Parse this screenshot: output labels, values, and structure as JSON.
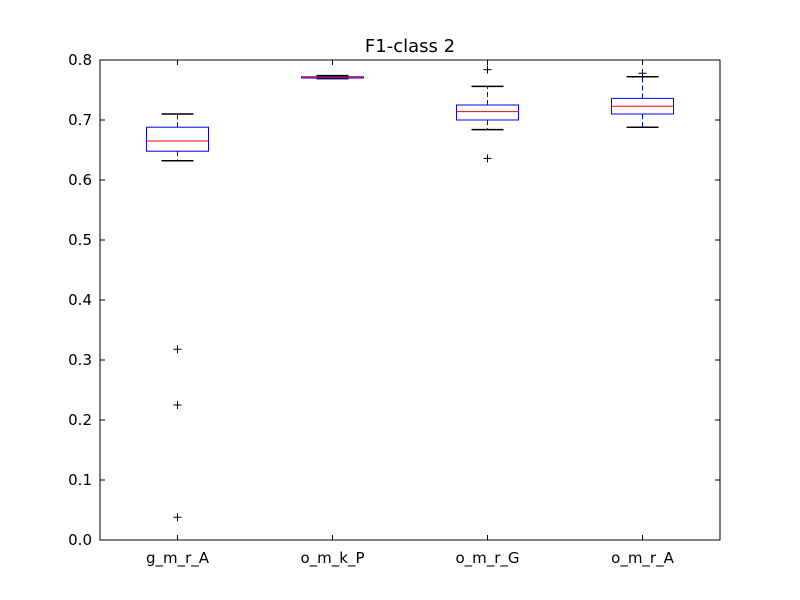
{
  "chart_data": {
    "type": "box",
    "title": "F1-class 2",
    "xlabel": "",
    "ylabel": "",
    "ylim": [
      0.0,
      0.8
    ],
    "yticks": [
      "0.0",
      "0.1",
      "0.2",
      "0.3",
      "0.4",
      "0.5",
      "0.6",
      "0.7",
      "0.8"
    ],
    "grid": false,
    "categories": [
      "g_m_r_A",
      "o_m_k_P",
      "o_m_r_G",
      "o_m_r_A"
    ],
    "boxes": [
      {
        "category": "g_m_r_A",
        "whisker_low": 0.632,
        "q1": 0.648,
        "median": 0.665,
        "q3": 0.688,
        "whisker_high": 0.71,
        "outliers": [
          0.318,
          0.225,
          0.038
        ]
      },
      {
        "category": "o_m_k_P",
        "whisker_low": 0.769,
        "q1": 0.77,
        "median": 0.771,
        "q3": 0.772,
        "whisker_high": 0.774,
        "outliers": []
      },
      {
        "category": "o_m_r_G",
        "whisker_low": 0.684,
        "q1": 0.7,
        "median": 0.714,
        "q3": 0.725,
        "whisker_high": 0.756,
        "outliers": [
          0.784,
          0.636
        ]
      },
      {
        "category": "o_m_r_A",
        "whisker_low": 0.688,
        "q1": 0.71,
        "median": 0.723,
        "q3": 0.736,
        "whisker_high": 0.772,
        "outliers": [
          0.778
        ]
      }
    ],
    "colors": {
      "box": "#0000ff",
      "median": "#ff0000",
      "whisker_cap": "#000000",
      "outlier": "#000000",
      "axes": "#000000"
    }
  }
}
